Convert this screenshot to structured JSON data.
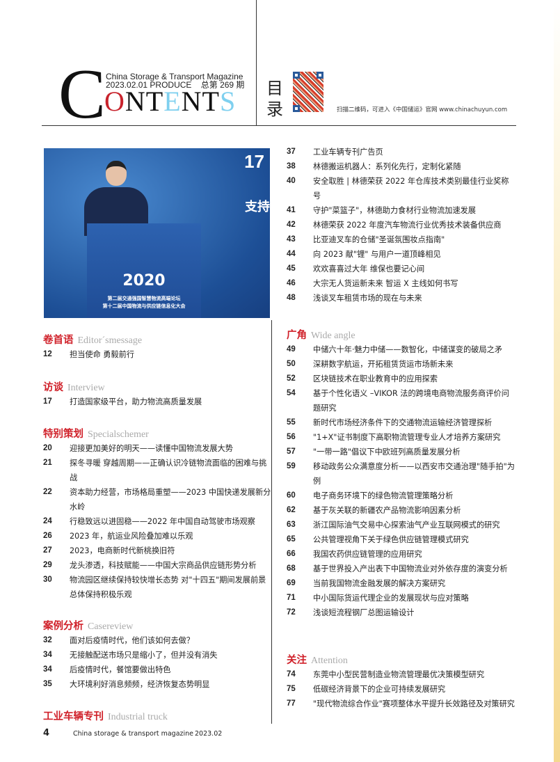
{
  "header": {
    "logo_first": "C",
    "logo_rest": [
      "O",
      "N",
      "T",
      "E",
      "N",
      "T",
      "S"
    ],
    "magazine_name": "China Storage & Transport Magazine",
    "issue": "2023.02.01 PRODUCE    总第 269 期",
    "mulu": "目录",
    "qr_caption": "扫描二维码，可进入《中国储运》官网 www.chinachuyun.com"
  },
  "photo": {
    "page_no": "17",
    "year": "2020",
    "line1": "第二届交通强国智慧物流高端论坛",
    "line2": "第十二届中国物流与供应链信息化大会",
    "side_text": "支持"
  },
  "left": [
    {
      "title": "卷首语",
      "en": "Editor´smessage",
      "items": [
        {
          "n": "12",
          "t": "担当使命 勇毅前行"
        }
      ]
    },
    {
      "title": "访谈",
      "en": "Interview",
      "items": [
        {
          "n": "17",
          "t": "打造国家级平台，助力物流高质量发展"
        }
      ]
    },
    {
      "title": "特别策划",
      "en": "Specialschemer",
      "items": [
        {
          "n": "20",
          "t": "迎接更加美好的明天——读懂中国物流发展大势"
        },
        {
          "n": "21",
          "t": "探冬寻暖 穿越周期——正确认识冷链物流面临的困难与挑战"
        },
        {
          "n": "22",
          "t": "资本助力经营，市场格局重塑——2023 中国快递发展新分水岭"
        },
        {
          "n": "24",
          "t": "行稳致远以进固稳——2022 年中国自动驾驶市场观察"
        },
        {
          "n": "26",
          "t": "2023 年，航运业风险叠加难以乐观"
        },
        {
          "n": "27",
          "t": "2023，电商新时代新桃换旧符"
        },
        {
          "n": "29",
          "t": "龙头渗透，科技赋能——中国大宗商品供应链形势分析"
        },
        {
          "n": "30",
          "t": "物流园区继续保持较快增长态势 对\"十四五\"期间发展前景总体保持积极乐观"
        }
      ]
    },
    {
      "title": "案例分析",
      "en": "Casereview",
      "items": [
        {
          "n": "32",
          "t": "面对后疫情时代，他们该如何去做？"
        },
        {
          "n": "34",
          "t": "无接触配送市场只是缩小了，但并没有消失"
        },
        {
          "n": "34",
          "t": "后疫情时代，餐馆要做出特色"
        },
        {
          "n": "35",
          "t": "大环境利好消息频频，经济恢复态势明显"
        }
      ]
    },
    {
      "title": "工业车辆专刊",
      "en": "Industrial truck",
      "items": []
    }
  ],
  "right": [
    {
      "title": "",
      "en": "",
      "items": [
        {
          "n": "37",
          "t": "工业车辆专刊广告页"
        },
        {
          "n": "38",
          "t": "林德搬运机器人：系列化先行，定制化紧随"
        },
        {
          "n": "40",
          "t": "安全取胜 | 林德荣获 2022 年仓库技术类别最佳行业奖称号"
        },
        {
          "n": "41",
          "t": "守护\"菜篮子\"，林德助力食材行业物流加速发展"
        },
        {
          "n": "42",
          "t": "林德荣获 2022 年度汽车物流行业优秀技术装备供应商"
        },
        {
          "n": "43",
          "t": "比亚迪叉车的仓储\"圣诞氛围妆点指南\""
        },
        {
          "n": "44",
          "t": "向 2023 献\"锂\" 与用户一道顶峰相见"
        },
        {
          "n": "45",
          "t": "欢欢喜喜过大年 维保也要记心间"
        },
        {
          "n": "46",
          "t": "大宗无人货运新未来 智运 X 主线如何书写"
        },
        {
          "n": "48",
          "t": "浅谈叉车租赁市场的现在与未来"
        }
      ]
    },
    {
      "title": "广角",
      "en": "Wide angle",
      "items": [
        {
          "n": "49",
          "t": "中储六十年·魅力中储——数智化，中储谋变的破局之矛"
        },
        {
          "n": "50",
          "t": "深耕数字航运，开拓租赁货运市场新未来"
        },
        {
          "n": "52",
          "t": "区块链技术在职业教育中的应用探索"
        },
        {
          "n": "54",
          "t": "基于个性化语义 –VIKOR 法的跨境电商物流服务商评价问题研究"
        },
        {
          "n": "55",
          "t": "新时代市场经济条件下的交通物流运输经济管理探析"
        },
        {
          "n": "56",
          "t": "\"1+X\"证书制度下高职物流管理专业人才培养方案研究"
        },
        {
          "n": "57",
          "t": "\"一带一路\"倡议下中欧班列高质量发展分析"
        },
        {
          "n": "59",
          "t": "移动政务公众满意度分析——以西安市交通治理\"随手拍\"为例"
        },
        {
          "n": "60",
          "t": "电子商务环境下的绿色物流管理策略分析"
        },
        {
          "n": "62",
          "t": "基于灰关联的新疆农产品物流影响因素分析"
        },
        {
          "n": "63",
          "t": "浙江国际油气交易中心探索油气产业互联网模式的研究"
        },
        {
          "n": "65",
          "t": "公共管理视角下关于绿色供应链管理模式研究"
        },
        {
          "n": "66",
          "t": "我国农药供应链管理的应用研究"
        },
        {
          "n": "68",
          "t": "基于世界投入产出表下中国物流业对外依存度的演变分析"
        },
        {
          "n": "69",
          "t": "当前我国物流金融发展的解决方案研究"
        },
        {
          "n": "71",
          "t": "中小国际货运代理企业的发展现状与应对策略"
        },
        {
          "n": "72",
          "t": "浅谈短流程钢厂总图运输设计"
        }
      ]
    },
    {
      "title": "关注",
      "en": "Attention",
      "items": [
        {
          "n": "74",
          "t": "东莞中小型民营制造业物流管理最优决策模型研究"
        },
        {
          "n": "75",
          "t": "低碳经济背景下的企业可持续发展研究"
        },
        {
          "n": "77",
          "t": "\"现代物流综合作业\"赛项整体水平提升长效路径及对策研究"
        }
      ]
    }
  ],
  "footer": {
    "page": "4",
    "magazine": "China storage & transport magazine",
    "date": "2023.02"
  },
  "colors": {
    "accent_red": "#d0212a",
    "logo_blue": "#7fd0ef"
  }
}
